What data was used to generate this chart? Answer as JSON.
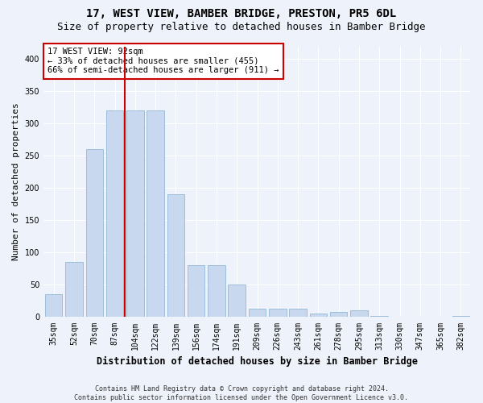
{
  "title": "17, WEST VIEW, BAMBER BRIDGE, PRESTON, PR5 6DL",
  "subtitle": "Size of property relative to detached houses in Bamber Bridge",
  "xlabel": "Distribution of detached houses by size in Bamber Bridge",
  "ylabel": "Number of detached properties",
  "bar_color": "#c8d8ee",
  "bar_edge_color": "#93b8d8",
  "background_color": "#eef2fa",
  "grid_color": "#ffffff",
  "annotation_box_color": "#cc0000",
  "vline_color": "#cc0000",
  "annotation_text": "17 WEST VIEW: 92sqm\n← 33% of detached houses are smaller (455)\n66% of semi-detached houses are larger (911) →",
  "categories": [
    "35sqm",
    "52sqm",
    "70sqm",
    "87sqm",
    "104sqm",
    "122sqm",
    "139sqm",
    "156sqm",
    "174sqm",
    "191sqm",
    "209sqm",
    "226sqm",
    "243sqm",
    "261sqm",
    "278sqm",
    "295sqm",
    "313sqm",
    "330sqm",
    "347sqm",
    "365sqm",
    "382sqm"
  ],
  "values": [
    35,
    85,
    260,
    320,
    320,
    320,
    190,
    80,
    80,
    50,
    13,
    13,
    13,
    5,
    8,
    10,
    2,
    1,
    1,
    0,
    2
  ],
  "vline_x_index": 3,
  "ylim": [
    0,
    420
  ],
  "yticks": [
    0,
    50,
    100,
    150,
    200,
    250,
    300,
    350,
    400
  ],
  "footnote": "Contains HM Land Registry data © Crown copyright and database right 2024.\nContains public sector information licensed under the Open Government Licence v3.0.",
  "title_fontsize": 10,
  "subtitle_fontsize": 9,
  "tick_fontsize": 7,
  "ylabel_fontsize": 8,
  "xlabel_fontsize": 8.5,
  "annotation_fontsize": 7.5,
  "footnote_fontsize": 6
}
